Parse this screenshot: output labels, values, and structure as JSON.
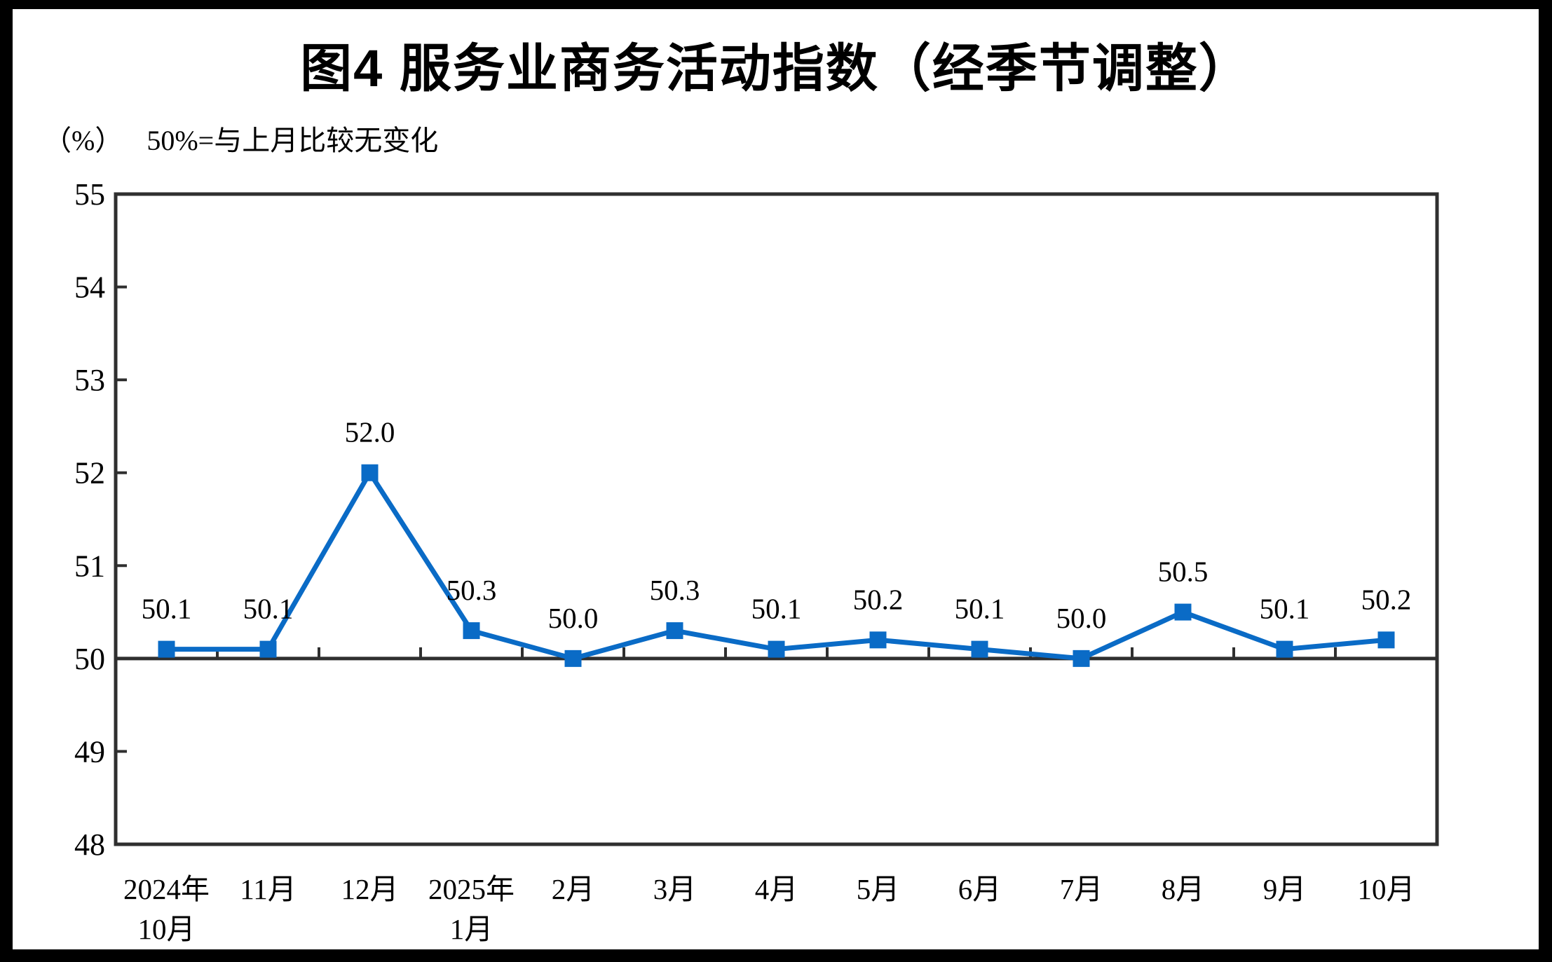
{
  "page": {
    "background_color": "#ffffff",
    "frame_color": "#000000"
  },
  "chart_data": {
    "type": "line",
    "title": "图4  服务业商务活动指数（经季节调整）",
    "unit_label": "（%）",
    "subtitle": "50%=与上月比较无变化",
    "categories": [
      [
        "2024年",
        "10月"
      ],
      [
        "11月"
      ],
      [
        "12月"
      ],
      [
        "2025年",
        "1月"
      ],
      [
        "2月"
      ],
      [
        "3月"
      ],
      [
        "4月"
      ],
      [
        "5月"
      ],
      [
        "6月"
      ],
      [
        "7月"
      ],
      [
        "8月"
      ],
      [
        "9月"
      ],
      [
        "10月"
      ]
    ],
    "series": [
      {
        "name": "服务业商务活动指数",
        "values": [
          50.1,
          50.1,
          52.0,
          50.3,
          50.0,
          50.3,
          50.1,
          50.2,
          50.1,
          50.0,
          50.5,
          50.1,
          50.2
        ],
        "labels": [
          "50.1",
          "50.1",
          "52.0",
          "50.3",
          "50.0",
          "50.3",
          "50.1",
          "50.2",
          "50.1",
          "50.0",
          "50.5",
          "50.1",
          "50.2"
        ]
      }
    ],
    "ylim": [
      48,
      55
    ],
    "yticks": [
      48,
      49,
      50,
      51,
      52,
      53,
      54,
      55
    ],
    "reference_line": 50,
    "grid": "off",
    "legend": "none",
    "line_color": "#0a6bc6",
    "marker": "square",
    "axis_color": "#2f2f2f",
    "label_color": "#000000"
  }
}
